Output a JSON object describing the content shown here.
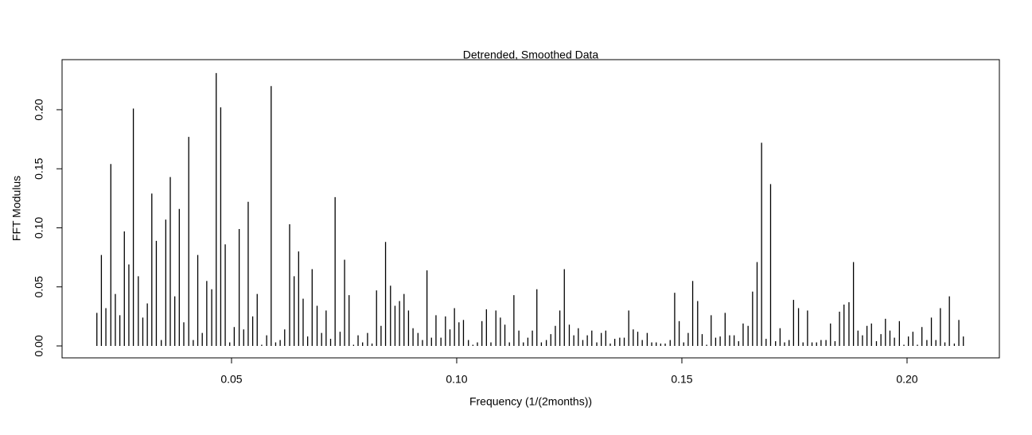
{
  "chart_data": {
    "type": "stem",
    "title": "Detrended, Smoothed Data",
    "x_label": "Frequency (1/(2months))",
    "y_label": "FFT Modulus",
    "color": "#000000",
    "xlim": [
      0.01237,
      0.2205
    ],
    "ylim": [
      -0.0101,
      0.2424
    ],
    "xticks": [
      0.05,
      {
        "value": 0.1,
        "label": "0.10"
      },
      0.15,
      {
        "value": 0.2,
        "label": "0.20"
      }
    ],
    "yticks": [
      {
        "value": 0,
        "label": "0.00"
      },
      0.05,
      {
        "value": 0.1,
        "label": "0.10"
      },
      0.15,
      {
        "value": 0.2,
        "label": "0.20"
      }
    ],
    "x": [
      0.0201,
      0.0211,
      0.0221,
      0.0232,
      0.0242,
      0.0252,
      0.0262,
      0.0272,
      0.0282,
      0.0293,
      0.0303,
      0.0313,
      0.0323,
      0.0333,
      0.0344,
      0.0354,
      0.0364,
      0.0374,
      0.0384,
      0.0394,
      0.0405,
      0.0415,
      0.0425,
      0.0435,
      0.0445,
      0.0456,
      0.0466,
      0.0476,
      0.0486,
      0.0496,
      0.0506,
      0.0517,
      0.0527,
      0.0537,
      0.0547,
      0.0557,
      0.0567,
      0.0578,
      0.0588,
      0.0598,
      0.0608,
      0.0618,
      0.0629,
      0.0639,
      0.0649,
      0.0659,
      0.0669,
      0.0679,
      0.069,
      0.07,
      0.071,
      0.072,
      0.073,
      0.0741,
      0.0751,
      0.0761,
      0.0771,
      0.0781,
      0.0791,
      0.0802,
      0.0812,
      0.0822,
      0.0832,
      0.0842,
      0.0853,
      0.0863,
      0.0873,
      0.0883,
      0.0893,
      0.0903,
      0.0914,
      0.0924,
      0.0934,
      0.0944,
      0.0954,
      0.0965,
      0.0975,
      0.0985,
      0.0995,
      0.1005,
      0.1015,
      0.1026,
      0.1036,
      0.1046,
      0.1056,
      0.1066,
      0.1076,
      0.1087,
      0.1097,
      0.1107,
      0.1117,
      0.1127,
      0.1138,
      0.1148,
      0.1158,
      0.1168,
      0.1178,
      0.1188,
      0.1199,
      0.1209,
      0.1219,
      0.1229,
      0.1239,
      0.125,
      0.126,
      0.127,
      0.128,
      0.129,
      0.13,
      0.1311,
      0.1321,
      0.1331,
      0.1341,
      0.1351,
      0.1362,
      0.1372,
      0.1382,
      0.1392,
      0.1402,
      0.1412,
      0.1423,
      0.1433,
      0.1443,
      0.1453,
      0.1463,
      0.1474,
      0.1484,
      0.1494,
      0.1504,
      0.1514,
      0.1524,
      0.1535,
      0.1545,
      0.1555,
      0.1565,
      0.1575,
      0.1585,
      0.1596,
      0.1606,
      0.1616,
      0.1626,
      0.1636,
      0.1647,
      0.1657,
      0.1667,
      0.1677,
      0.1687,
      0.1697,
      0.1708,
      0.1718,
      0.1728,
      0.1738,
      0.1748,
      0.1759,
      0.1769,
      0.1779,
      0.1789,
      0.1799,
      0.1809,
      0.182,
      0.183,
      0.184,
      0.185,
      0.186,
      0.1871,
      0.1881,
      0.1891,
      0.1901,
      0.1911,
      0.1921,
      0.1932,
      0.1942,
      0.1952,
      0.1962,
      0.1972,
      0.1983,
      0.1993,
      0.2003,
      0.2013,
      0.2023,
      0.2033,
      0.2044,
      0.2054,
      0.2064,
      0.2074,
      0.2084,
      0.2094,
      0.2105,
      0.2115,
      0.2125
    ],
    "values": [
      0.028,
      0.077,
      0.032,
      0.154,
      0.044,
      0.026,
      0.097,
      0.069,
      0.201,
      0.059,
      0.024,
      0.036,
      0.129,
      0.089,
      0.005,
      0.107,
      0.143,
      0.042,
      0.116,
      0.02,
      0.177,
      0.005,
      0.077,
      0.011,
      0.055,
      0.048,
      0.231,
      0.202,
      0.086,
      0.003,
      0.016,
      0.099,
      0.014,
      0.122,
      0.025,
      0.044,
      0.001,
      0.009,
      0.22,
      0.003,
      0.005,
      0.014,
      0.103,
      0.059,
      0.08,
      0.04,
      0.008,
      0.065,
      0.034,
      0.011,
      0.03,
      0.006,
      0.126,
      0.012,
      0.073,
      0.043,
      0.001,
      0.009,
      0.003,
      0.011,
      0.002,
      0.047,
      0.017,
      0.088,
      0.051,
      0.034,
      0.038,
      0.044,
      0.03,
      0.015,
      0.011,
      0.005,
      0.064,
      0.007,
      0.026,
      0.007,
      0.025,
      0.014,
      0.032,
      0.02,
      0.022,
      0.005,
      0.001,
      0.003,
      0.021,
      0.031,
      0.003,
      0.03,
      0.024,
      0.018,
      0.003,
      0.043,
      0.013,
      0.003,
      0.007,
      0.013,
      0.048,
      0.003,
      0.005,
      0.01,
      0.017,
      0.03,
      0.065,
      0.018,
      0.009,
      0.015,
      0.005,
      0.009,
      0.013,
      0.003,
      0.011,
      0.013,
      0.002,
      0.006,
      0.007,
      0.007,
      0.03,
      0.014,
      0.012,
      0.005,
      0.011,
      0.003,
      0.003,
      0.002,
      0.002,
      0.005,
      0.045,
      0.021,
      0.003,
      0.011,
      0.055,
      0.038,
      0.01,
      0.001,
      0.026,
      0.007,
      0.008,
      0.028,
      0.009,
      0.009,
      0.004,
      0.019,
      0.017,
      0.046,
      0.071,
      0.172,
      0.006,
      0.137,
      0.004,
      0.015,
      0.003,
      0.005,
      0.039,
      0.032,
      0.003,
      0.03,
      0.003,
      0.003,
      0.005,
      0.005,
      0.019,
      0.004,
      0.029,
      0.035,
      0.037,
      0.071,
      0.013,
      0.009,
      0.017,
      0.019,
      0.004,
      0.01,
      0.023,
      0.013,
      0.007,
      0.021,
      0.001,
      0.008,
      0.012,
      0.001,
      0.016,
      0.005,
      0.024,
      0.005,
      0.032,
      0.003,
      0.042,
      0.002,
      0.022,
      0.008
    ]
  }
}
